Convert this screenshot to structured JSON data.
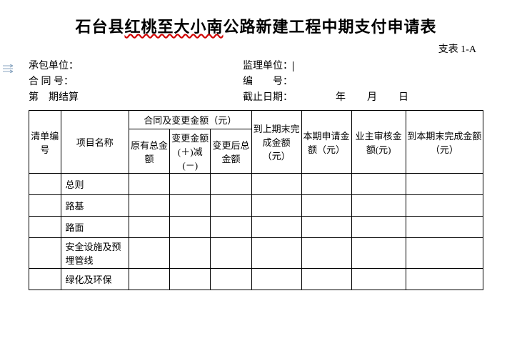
{
  "title_plain_1": "石台县",
  "title_wavy": "红桃至大小南",
  "title_plain_2": "公路新建工程中期支付申请表",
  "form_code": "支表 1-A",
  "meta": {
    "contractor_label": "承包单位：",
    "contract_no_label": "合 同 号：",
    "period_prefix": "第",
    "period_suffix": "期结算",
    "supervisor_label": "监理单位：",
    "serial_label": "编　　号：",
    "deadline_label": "截止日期：",
    "year": "年",
    "month": "月",
    "day": "日"
  },
  "table": {
    "col_widths_pct": [
      7,
      15,
      9,
      9,
      9,
      11,
      11,
      12,
      17
    ],
    "headers": {
      "bill_no": "清单编号",
      "item_name": "项目名称",
      "contract_group": "合同及变更金额（元）",
      "original": "原有总金额",
      "change": "变更金额(＋)减(－)",
      "after_change": "变更后总金额",
      "prev_incomplete": "到上期末完成金额（元）",
      "this_period": "本期申请金额（元）",
      "owner_check": "业主审核金额(元)",
      "to_this_incomplete": "到本期末完成金额（元）"
    },
    "rows": [
      {
        "no": "",
        "name": "总则"
      },
      {
        "no": "",
        "name": "路基"
      },
      {
        "no": "",
        "name": "路面"
      },
      {
        "no": "",
        "name": "安全设施及预埋管线"
      },
      {
        "no": "",
        "name": "绿化及环保"
      }
    ]
  },
  "colors": {
    "wavy": "#d00000",
    "border": "#000000",
    "bg": "#ffffff"
  }
}
